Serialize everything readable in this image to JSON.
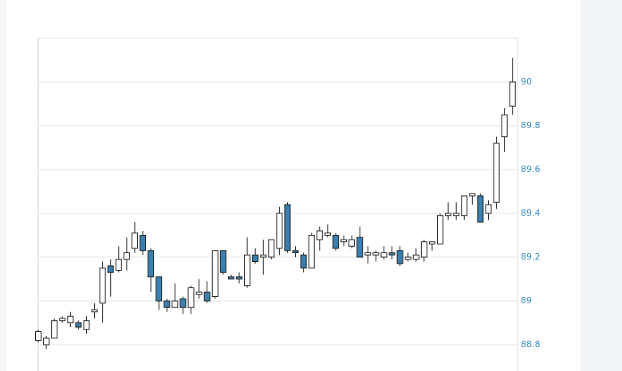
{
  "chart_data": {
    "type": "candlestick",
    "categories": [
      null,
      null,
      null,
      null,
      null,
      null,
      null,
      null,
      null,
      null,
      null,
      null,
      null,
      null,
      null,
      null,
      null,
      null,
      null,
      null,
      null,
      null,
      null,
      null,
      null,
      null,
      null,
      null,
      null,
      null,
      null,
      null,
      null,
      null,
      null,
      null,
      null,
      null,
      null,
      null,
      null,
      null,
      null,
      null,
      null,
      null,
      null,
      null,
      null,
      null,
      null,
      null,
      null,
      null,
      null,
      null,
      null,
      null,
      null,
      null
    ],
    "open": [
      88.82,
      88.8,
      88.83,
      88.91,
      88.9,
      88.9,
      88.87,
      88.95,
      88.99,
      89.16,
      89.14,
      89.19,
      89.24,
      89.3,
      89.23,
      89.11,
      89.0,
      88.97,
      89.01,
      88.97,
      89.03,
      89.04,
      89.02,
      89.23,
      89.11,
      89.11,
      89.07,
      89.21,
      89.2,
      89.2,
      89.24,
      89.44,
      89.23,
      89.21,
      89.15,
      89.28,
      89.3,
      89.3,
      89.27,
      89.25,
      89.29,
      89.21,
      89.21,
      89.2,
      89.22,
      89.23,
      89.19,
      89.19,
      89.2,
      89.26,
      89.26,
      89.39,
      89.39,
      89.39,
      89.48,
      89.48,
      89.4,
      89.45,
      89.75,
      89.89
    ],
    "high": [
      88.87,
      88.84,
      88.92,
      88.93,
      88.95,
      88.91,
      88.93,
      88.99,
      89.18,
      89.19,
      89.25,
      89.29,
      89.36,
      89.32,
      89.24,
      89.11,
      89.01,
      89.08,
      89.02,
      89.07,
      89.1,
      89.09,
      89.23,
      89.23,
      89.12,
      89.13,
      89.29,
      89.24,
      89.28,
      89.28,
      89.43,
      89.45,
      89.25,
      89.22,
      89.31,
      89.34,
      89.35,
      89.31,
      89.3,
      89.3,
      89.34,
      89.25,
      89.23,
      89.25,
      89.25,
      89.25,
      89.22,
      89.24,
      89.28,
      89.27,
      89.4,
      89.45,
      89.45,
      89.48,
      89.49,
      89.49,
      89.46,
      89.75,
      89.88,
      90.11
    ],
    "low": [
      88.81,
      88.78,
      88.83,
      88.9,
      88.88,
      88.87,
      88.85,
      88.92,
      88.9,
      89.02,
      89.13,
      89.14,
      89.22,
      89.21,
      89.04,
      88.96,
      88.95,
      88.97,
      88.94,
      88.94,
      89.01,
      88.99,
      89.01,
      89.12,
      89.1,
      89.08,
      89.06,
      89.17,
      89.12,
      89.19,
      89.21,
      89.22,
      89.2,
      89.13,
      89.15,
      89.23,
      89.29,
      89.23,
      89.25,
      89.24,
      89.2,
      89.17,
      89.18,
      89.19,
      89.19,
      89.16,
      89.18,
      89.18,
      89.18,
      89.23,
      89.26,
      89.37,
      89.37,
      89.37,
      89.44,
      89.36,
      89.37,
      89.42,
      89.68,
      89.85
    ],
    "close": [
      88.86,
      88.83,
      88.91,
      88.92,
      88.93,
      88.88,
      88.91,
      88.96,
      89.15,
      89.13,
      89.19,
      89.22,
      89.31,
      89.23,
      89.11,
      89.0,
      88.97,
      89.0,
      88.97,
      89.06,
      89.04,
      89.0,
      89.23,
      89.13,
      89.1,
      89.1,
      89.21,
      89.18,
      89.21,
      89.28,
      89.4,
      89.23,
      89.22,
      89.15,
      89.3,
      89.32,
      89.31,
      89.24,
      89.28,
      89.28,
      89.2,
      89.22,
      89.22,
      89.22,
      89.21,
      89.17,
      89.2,
      89.21,
      89.27,
      89.27,
      89.39,
      89.4,
      89.4,
      89.48,
      89.49,
      89.36,
      89.44,
      89.72,
      89.85,
      90.0
    ],
    "up_color": "#ffffff",
    "down_color": "#3a7fae",
    "ylim": [
      88.68,
      90.2
    ],
    "yticks": [
      88.8,
      89,
      89.2,
      89.4,
      89.6,
      89.8,
      90
    ],
    "grid": true
  }
}
